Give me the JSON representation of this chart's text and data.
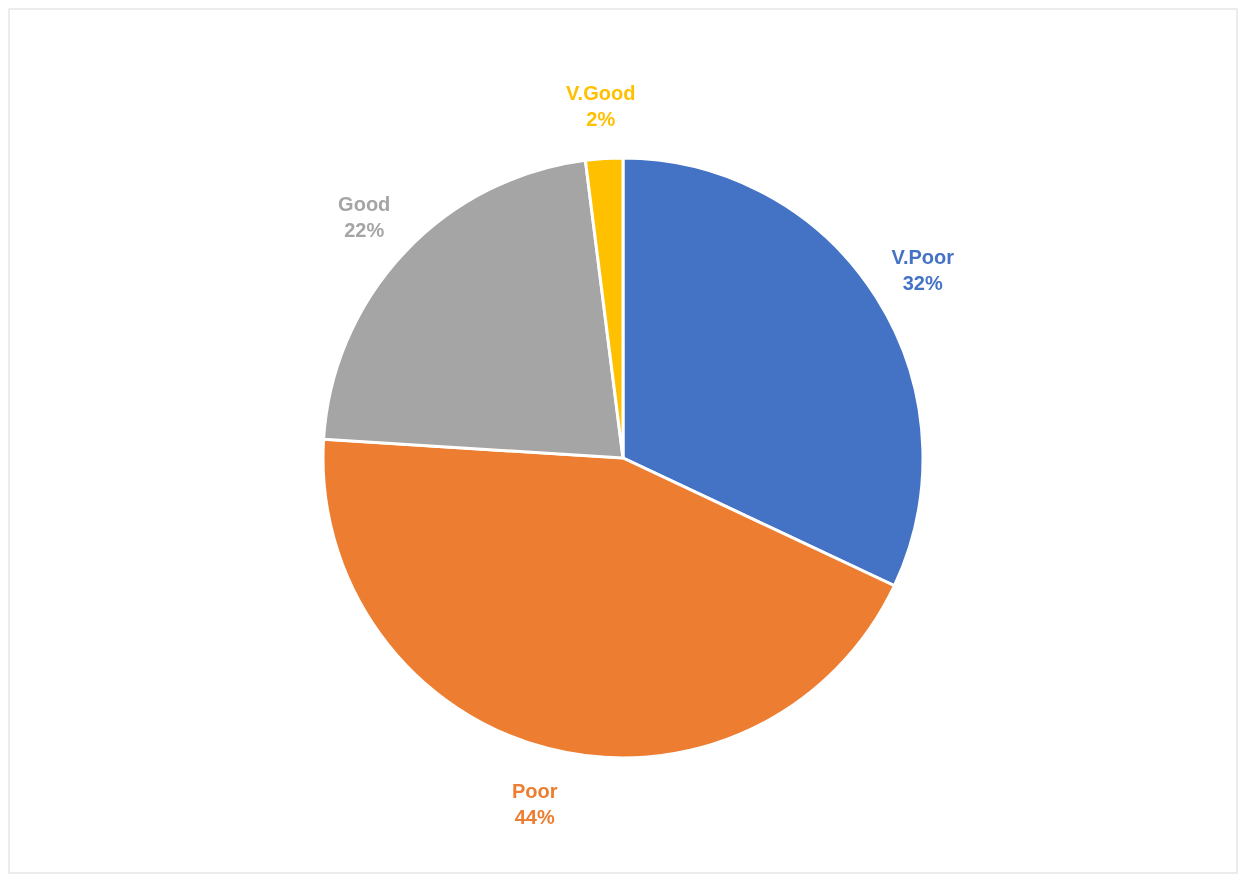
{
  "chart_data": {
    "type": "pie",
    "categories": [
      "V.Poor",
      "Poor",
      "Good",
      "V.Good"
    ],
    "values": [
      32,
      44,
      22,
      2
    ],
    "colors": [
      "#4472c4",
      "#ed7d31",
      "#a5a5a5",
      "#ffc000"
    ],
    "value_labels": [
      "32%",
      "44%",
      "22%",
      "2%"
    ]
  }
}
